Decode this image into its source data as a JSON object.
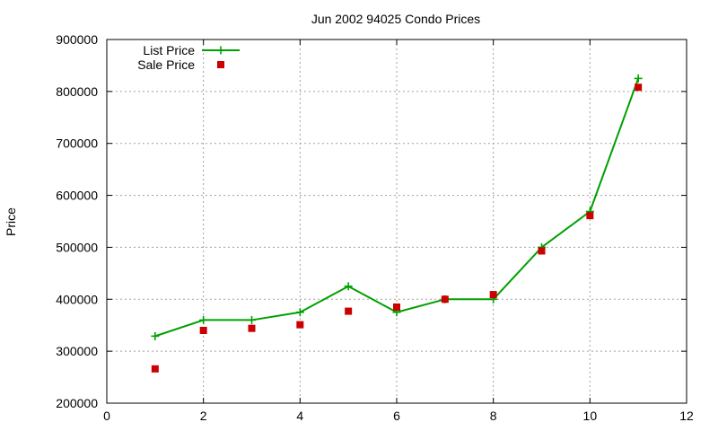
{
  "chart_data": {
    "type": "line",
    "title": "Jun 2002 94025 Condo Prices",
    "xlabel": "",
    "ylabel": "Price",
    "xlim": [
      0,
      12
    ],
    "ylim": [
      200000,
      900000
    ],
    "x_ticks": [
      0,
      2,
      4,
      6,
      8,
      10,
      12
    ],
    "y_ticks": [
      200000,
      300000,
      400000,
      500000,
      600000,
      700000,
      800000,
      900000
    ],
    "grid": true,
    "legend_position": "top-left",
    "series": [
      {
        "name": "List Price",
        "style": "line-points",
        "marker": "plus",
        "color": "#00a000",
        "x": [
          1,
          2,
          3,
          4,
          5,
          6,
          7,
          8,
          9,
          10,
          11
        ],
        "y": [
          329000,
          360000,
          360000,
          375000,
          425000,
          375000,
          400000,
          400000,
          500000,
          569000,
          825000
        ]
      },
      {
        "name": "Sale Price",
        "style": "points",
        "marker": "square",
        "color": "#cc0000",
        "x": [
          1,
          2,
          3,
          4,
          5,
          6,
          7,
          8,
          9,
          10,
          11
        ],
        "y": [
          266000,
          340000,
          344000,
          351000,
          377000,
          385000,
          400000,
          409000,
          493000,
          561000,
          808000
        ]
      }
    ]
  }
}
